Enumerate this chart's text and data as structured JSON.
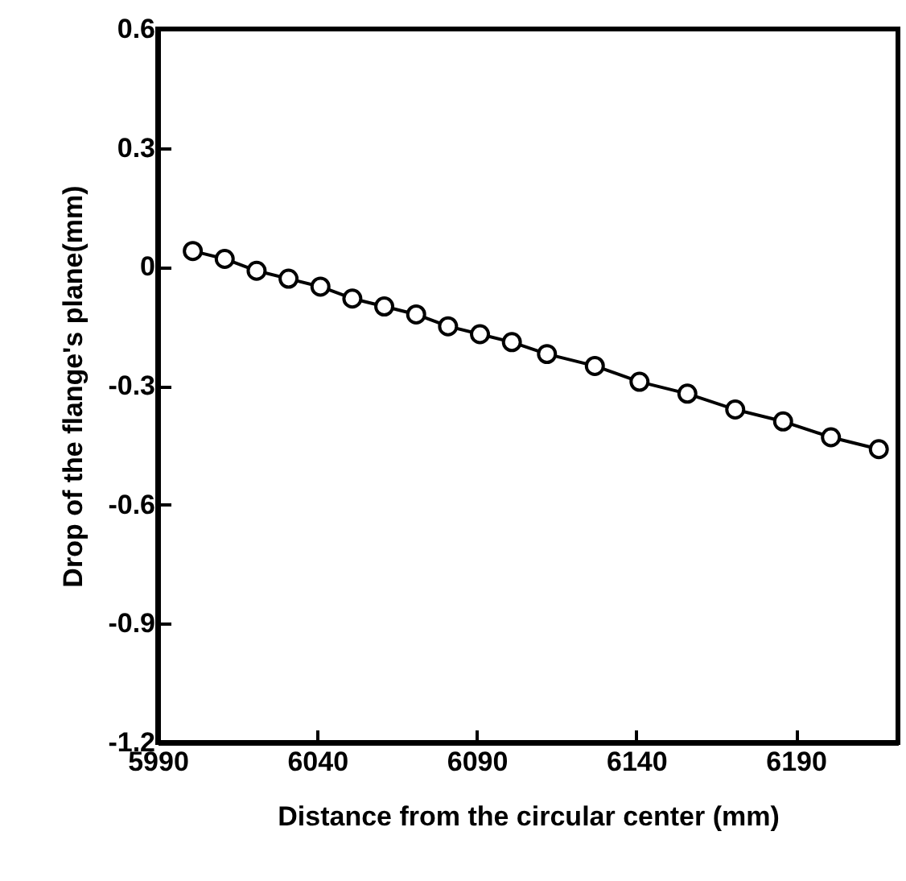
{
  "chart_data": {
    "type": "line",
    "xlabel": "Distance from the circular center (mm)",
    "ylabel": "Drop of the flange's plane(mm)",
    "x": [
      6001,
      6011,
      6021,
      6031,
      6041,
      6051,
      6061,
      6071,
      6081,
      6091,
      6101,
      6112,
      6127,
      6141,
      6156,
      6171,
      6186,
      6201,
      6216
    ],
    "series": [
      {
        "color": "#000000",
        "values": [
          0.04,
          0.02,
          -0.01,
          -0.03,
          -0.05,
          -0.08,
          -0.1,
          -0.12,
          -0.15,
          -0.17,
          -0.19,
          -0.22,
          -0.25,
          -0.29,
          -0.32,
          -0.36,
          -0.39,
          -0.43,
          -0.46
        ]
      }
    ],
    "xlim": [
      5990,
      6222
    ],
    "xticks": [
      5990,
      6040,
      6090,
      6140,
      6190
    ],
    "ylim": [
      -1.2,
      0.6
    ],
    "yticks": [
      -1.2,
      -0.9,
      -0.6,
      -0.3,
      0,
      0.3,
      0.6
    ],
    "grid": false,
    "marker": "circle",
    "line_style": "solid"
  }
}
